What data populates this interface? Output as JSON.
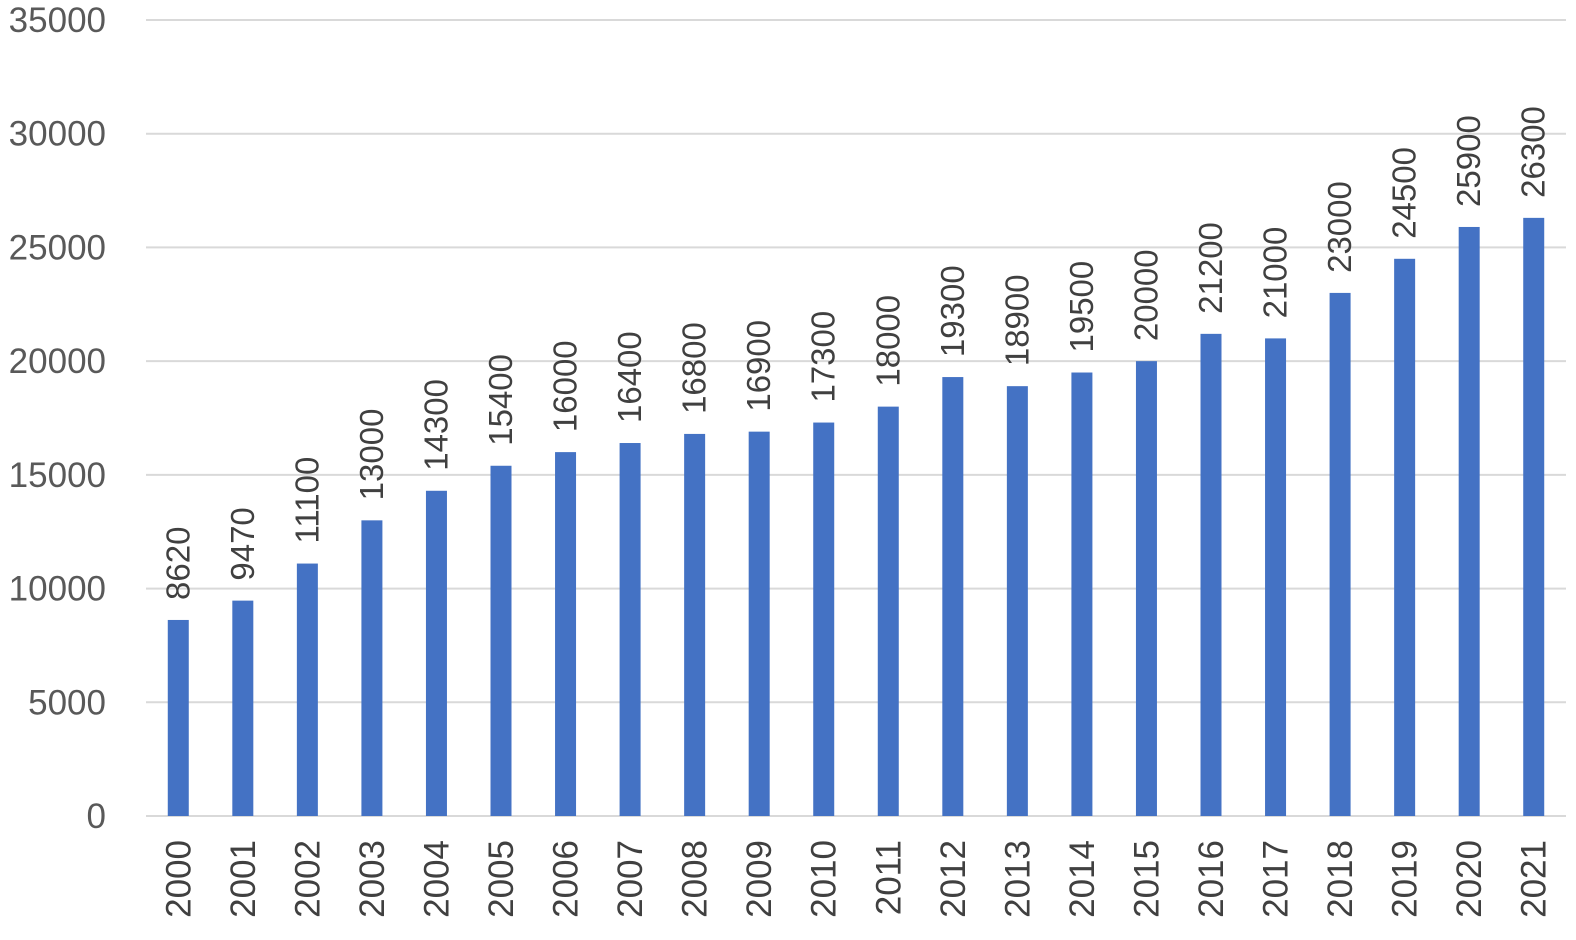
{
  "chart_data": {
    "type": "bar",
    "title": "",
    "xlabel": "",
    "ylabel": "",
    "categories": [
      "2000",
      "2001",
      "2002",
      "2003",
      "2004",
      "2005",
      "2006",
      "2007",
      "2008",
      "2009",
      "2010",
      "2011",
      "2012",
      "2013",
      "2014",
      "2015",
      "2016",
      "2017",
      "2018",
      "2019",
      "2020",
      "2021"
    ],
    "values": [
      8620,
      9470,
      11100,
      13000,
      14300,
      15400,
      16000,
      16400,
      16800,
      16900,
      17300,
      18000,
      19300,
      18900,
      19500,
      20000,
      21200,
      21000,
      23000,
      24500,
      25900,
      26300
    ],
    "data_labels": [
      "8620",
      "9470",
      "11100",
      "13000",
      "14300",
      "15400",
      "16000",
      "16400",
      "16800",
      "16900",
      "17300",
      "18000",
      "19300",
      "18900",
      "19500",
      "20000",
      "21200",
      "21000",
      "23000",
      "24500",
      "25900",
      "26300"
    ],
    "y_ticks": [
      "0",
      "5000",
      "10000",
      "15000",
      "20000",
      "25000",
      "30000",
      "35000"
    ],
    "ylim": [
      0,
      35000
    ],
    "grid": true,
    "legend": "none",
    "bar_color": "#4472c4"
  }
}
